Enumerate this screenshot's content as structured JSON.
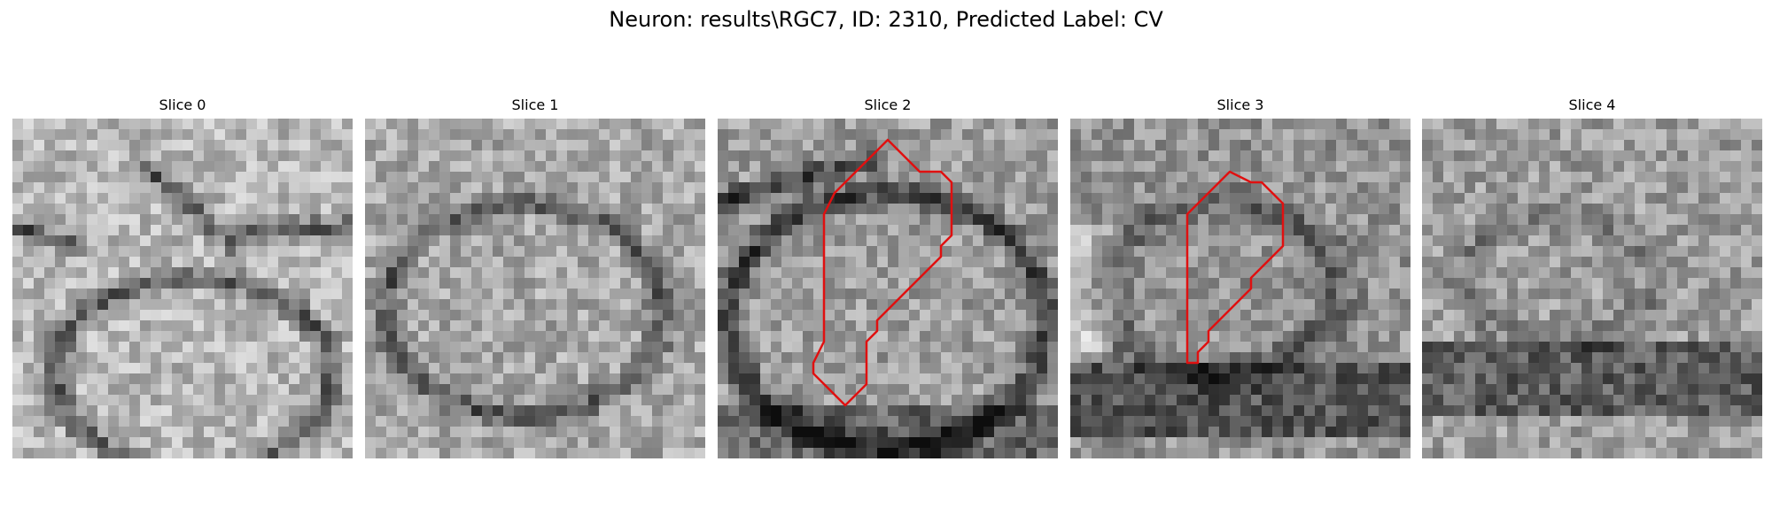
{
  "figure": {
    "suptitle": "Neuron: results\\RGC7, ID: 2310, Predicted Label: CV",
    "contour_color": "#e01010",
    "colormap": "gray",
    "panels": [
      {
        "title": "Slice 0",
        "has_contour": false
      },
      {
        "title": "Slice 1",
        "has_contour": false
      },
      {
        "title": "Slice 2",
        "has_contour": true
      },
      {
        "title": "Slice 3",
        "has_contour": true
      },
      {
        "title": "Slice 4",
        "has_contour": false
      }
    ]
  }
}
